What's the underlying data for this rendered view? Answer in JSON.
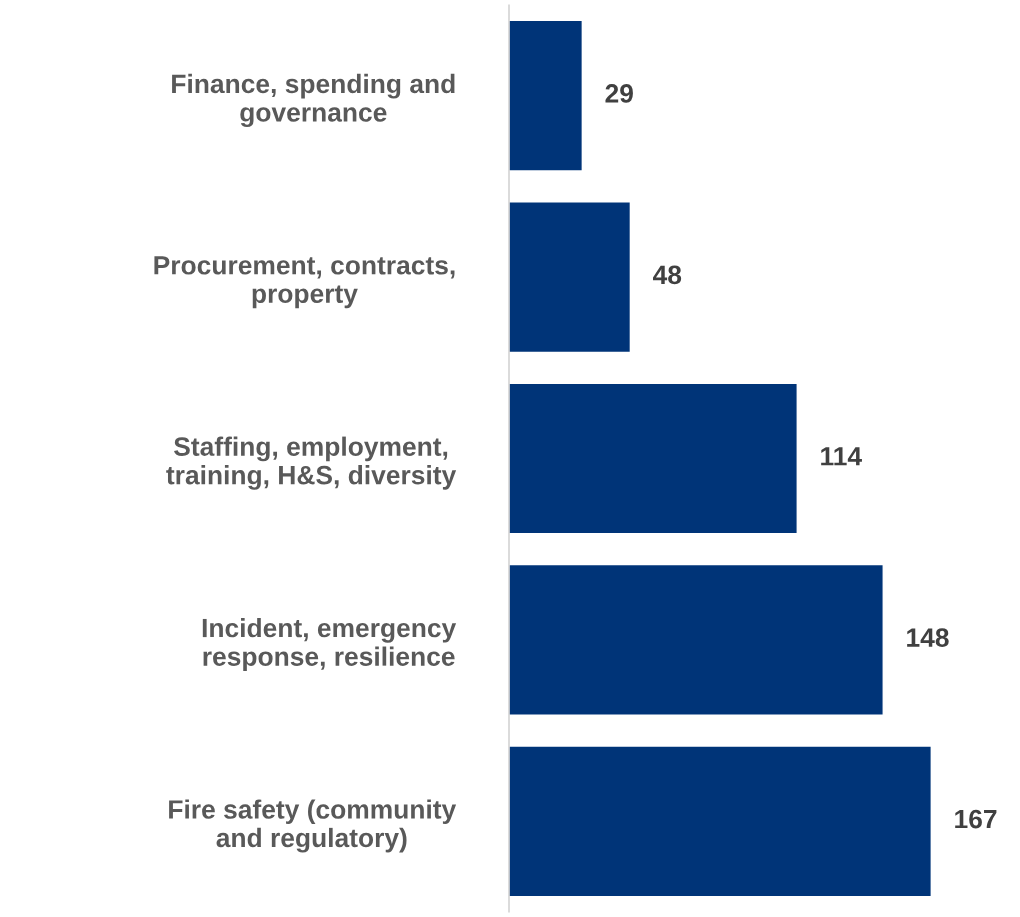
{
  "chart_data": {
    "type": "bar",
    "orientation": "horizontal",
    "categories": [
      "Finance, spending and\ngovernance",
      "Procurement, contracts,\nproperty",
      "Staffing, employment,\ntraining, H&S, diversity",
      "Incident, emergency\nresponse, resilience",
      "Fire safety (community\nand regulatory)"
    ],
    "values": [
      29,
      48,
      114,
      148,
      167
    ],
    "color": "#003478",
    "data_labels": true,
    "grid": false,
    "legend": false,
    "tick_labels": "y"
  }
}
